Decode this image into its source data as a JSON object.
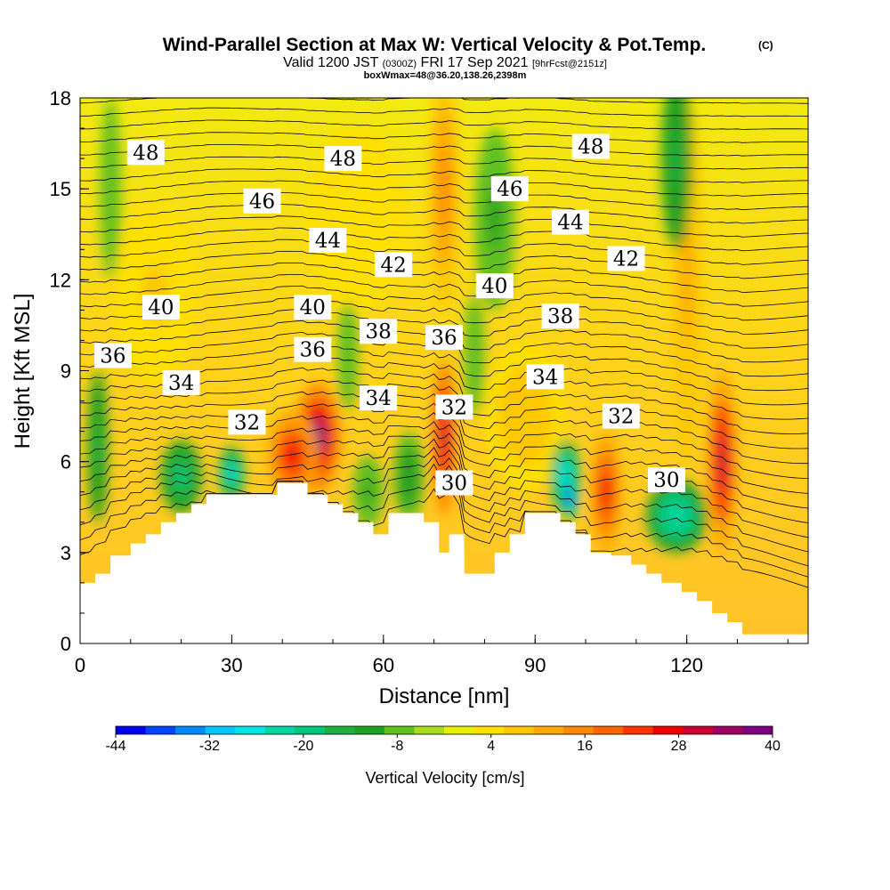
{
  "header": {
    "title_main": "Wind-Parallel Section at Max W: Vertical Velocity & Pot.Temp.",
    "title_mark": "(C)",
    "line2_a": "Valid 1200 JST",
    "line2_b": "(0300Z)",
    "line2_c": "FRI 17 Sep 2021",
    "line2_d": "[9hrFcst@2151z]",
    "line3": "boxWmax=48@36.20,138.26,2398m"
  },
  "chart_data": {
    "type": "heatmap",
    "title": "Wind-Parallel Section at Max W: Vertical Velocity & Pot.Temp.",
    "xlabel": "Distance [nm]",
    "ylabel": "Height [Kft MSL]",
    "xlim": [
      0,
      144
    ],
    "ylim": [
      0,
      18
    ],
    "x_ticks": [
      0,
      30,
      60,
      90,
      120
    ],
    "y_ticks": [
      0,
      3,
      6,
      9,
      12,
      15,
      18
    ],
    "x_ticklabels": [
      "0",
      "30",
      "60",
      "90",
      "120"
    ],
    "y_ticklabels": [
      "0",
      "3",
      "6",
      "9",
      "12",
      "15",
      "18"
    ],
    "colorbar": {
      "label": "Vertical Velocity [cm/s]",
      "min": -44,
      "max": 40,
      "tick_values": [
        -44,
        -32,
        -20,
        -8,
        4,
        16,
        28,
        40
      ],
      "tick_labels": [
        "-44",
        "-32",
        "-20",
        "-8",
        "4",
        "16",
        "28",
        "40"
      ],
      "colors": [
        "#0000ee",
        "#0044ff",
        "#0088ff",
        "#00c8ff",
        "#00e6e6",
        "#00d6a0",
        "#00c87a",
        "#20b040",
        "#20a020",
        "#60c020",
        "#a8dc20",
        "#e6f000",
        "#ffe000",
        "#ffc800",
        "#ffa800",
        "#ff8800",
        "#ff6600",
        "#ff3300",
        "#ee0000",
        "#cc0033",
        "#a00060",
        "#7a0080"
      ]
    },
    "terrain": [
      [
        0,
        2
      ],
      [
        3,
        2
      ],
      [
        3,
        2.3
      ],
      [
        6,
        2.3
      ],
      [
        6,
        2.9
      ],
      [
        10,
        2.9
      ],
      [
        10,
        3.3
      ],
      [
        13,
        3.3
      ],
      [
        13,
        3.6
      ],
      [
        16,
        3.6
      ],
      [
        16,
        4
      ],
      [
        19,
        4
      ],
      [
        19,
        4.3
      ],
      [
        22,
        4.3
      ],
      [
        22,
        4.6
      ],
      [
        25,
        4.6
      ],
      [
        25,
        4.9
      ],
      [
        39,
        4.9
      ],
      [
        39,
        5.3
      ],
      [
        45,
        5.3
      ],
      [
        45,
        4.9
      ],
      [
        49,
        4.9
      ],
      [
        49,
        4.6
      ],
      [
        52,
        4.6
      ],
      [
        52,
        4.3
      ],
      [
        55,
        4.3
      ],
      [
        55,
        4
      ],
      [
        58,
        4
      ],
      [
        58,
        3.6
      ],
      [
        61,
        3.6
      ],
      [
        61,
        4.3
      ],
      [
        68,
        4.3
      ],
      [
        68,
        4
      ],
      [
        71,
        4
      ],
      [
        71,
        3
      ],
      [
        73,
        3
      ],
      [
        73,
        3.6
      ],
      [
        76,
        3.6
      ],
      [
        76,
        2.3
      ],
      [
        82,
        2.3
      ],
      [
        82,
        3
      ],
      [
        85,
        3
      ],
      [
        85,
        3.6
      ],
      [
        88,
        3.6
      ],
      [
        88,
        4.3
      ],
      [
        95,
        4.3
      ],
      [
        95,
        4
      ],
      [
        98,
        4
      ],
      [
        98,
        3.6
      ],
      [
        101,
        3.6
      ],
      [
        101,
        3
      ],
      [
        105,
        3
      ],
      [
        105,
        2.9
      ],
      [
        109,
        2.9
      ],
      [
        109,
        2.6
      ],
      [
        112,
        2.6
      ],
      [
        112,
        2.3
      ],
      [
        115,
        2.3
      ],
      [
        115,
        2
      ],
      [
        119,
        2
      ],
      [
        119,
        1.7
      ],
      [
        122,
        1.7
      ],
      [
        122,
        1.4
      ],
      [
        125,
        1.4
      ],
      [
        125,
        1
      ],
      [
        128,
        1
      ],
      [
        128,
        0.7
      ],
      [
        131,
        0.7
      ],
      [
        131,
        0.3
      ],
      [
        144,
        0.3
      ]
    ],
    "w_features": [
      {
        "x": 47,
        "y": 6.8,
        "sx": 4.5,
        "sy": 1.8,
        "w": 40
      },
      {
        "x": 42,
        "y": 6.2,
        "sx": 5,
        "sy": 1.5,
        "w": 26
      },
      {
        "x": 72,
        "y": 6.8,
        "sx": 2.2,
        "sy": 2.6,
        "w": 32
      },
      {
        "x": 72,
        "y": 15,
        "sx": 3,
        "sy": 4,
        "w": 14
      },
      {
        "x": 104,
        "y": 5,
        "sx": 3,
        "sy": 2,
        "w": 28
      },
      {
        "x": 127,
        "y": 6,
        "sx": 3,
        "sy": 3,
        "w": 30
      },
      {
        "x": 120,
        "y": 12,
        "sx": 3,
        "sy": 6,
        "w": 10
      },
      {
        "x": 97,
        "y": 4.8,
        "sx": 1.5,
        "sy": 0.7,
        "w": -44
      },
      {
        "x": 96,
        "y": 5.5,
        "sx": 3,
        "sy": 1.2,
        "w": -28
      },
      {
        "x": 30,
        "y": 5.6,
        "sx": 2.5,
        "sy": 0.9,
        "w": -26
      },
      {
        "x": 20,
        "y": 5.5,
        "sx": 4,
        "sy": 1.2,
        "w": -20
      },
      {
        "x": 118,
        "y": 4.2,
        "sx": 6,
        "sy": 1.2,
        "w": -22
      },
      {
        "x": 3.5,
        "y": 6.5,
        "sx": 2,
        "sy": 2.5,
        "w": -16
      },
      {
        "x": 118,
        "y": 16,
        "sx": 3,
        "sy": 3,
        "w": -14
      },
      {
        "x": 82,
        "y": 14,
        "sx": 4,
        "sy": 3,
        "w": -10
      },
      {
        "x": 6,
        "y": 15,
        "sx": 2,
        "sy": 3,
        "w": -8
      },
      {
        "x": 65,
        "y": 5.5,
        "sx": 3,
        "sy": 1.5,
        "w": -12
      },
      {
        "x": 57,
        "y": 5,
        "sx": 3,
        "sy": 1.2,
        "w": -10
      },
      {
        "x": 78,
        "y": 9.5,
        "sx": 2,
        "sy": 2,
        "w": -8
      },
      {
        "x": 53,
        "y": 9.5,
        "sx": 2,
        "sy": 1.8,
        "w": -8
      },
      {
        "x": 88,
        "y": 7.5,
        "sx": 8,
        "sy": 2.5,
        "w": 8
      },
      {
        "x": 15,
        "y": 11.5,
        "sx": 8,
        "sy": 3,
        "w": 6
      },
      {
        "x": 55,
        "y": 14,
        "sx": 10,
        "sy": 3,
        "w": 4
      }
    ],
    "contour_labels": [
      {
        "text": "48",
        "x": 13,
        "y": 16.2
      },
      {
        "text": "48",
        "x": 52,
        "y": 16.0
      },
      {
        "text": "48",
        "x": 101,
        "y": 16.4
      },
      {
        "text": "46",
        "x": 36,
        "y": 14.6
      },
      {
        "text": "46",
        "x": 85,
        "y": 15.0
      },
      {
        "text": "44",
        "x": 49,
        "y": 13.3
      },
      {
        "text": "44",
        "x": 97,
        "y": 13.9
      },
      {
        "text": "42",
        "x": 62,
        "y": 12.5
      },
      {
        "text": "42",
        "x": 108,
        "y": 12.7
      },
      {
        "text": "40",
        "x": 16,
        "y": 11.1
      },
      {
        "text": "40",
        "x": 46,
        "y": 11.1
      },
      {
        "text": "40",
        "x": 82,
        "y": 11.8
      },
      {
        "text": "38",
        "x": 59,
        "y": 10.3
      },
      {
        "text": "38",
        "x": 95,
        "y": 10.8
      },
      {
        "text": "36",
        "x": 6.5,
        "y": 9.5
      },
      {
        "text": "36",
        "x": 46,
        "y": 9.7
      },
      {
        "text": "36",
        "x": 72,
        "y": 10.1
      },
      {
        "text": "34",
        "x": 20,
        "y": 8.6
      },
      {
        "text": "34",
        "x": 59,
        "y": 8.1
      },
      {
        "text": "34",
        "x": 92,
        "y": 8.8
      },
      {
        "text": "32",
        "x": 33,
        "y": 7.3
      },
      {
        "text": "32",
        "x": 74,
        "y": 7.8
      },
      {
        "text": "32",
        "x": 107,
        "y": 7.5
      },
      {
        "text": "30",
        "x": 74,
        "y": 5.3
      },
      {
        "text": "30",
        "x": 116,
        "y": 5.4
      }
    ]
  }
}
